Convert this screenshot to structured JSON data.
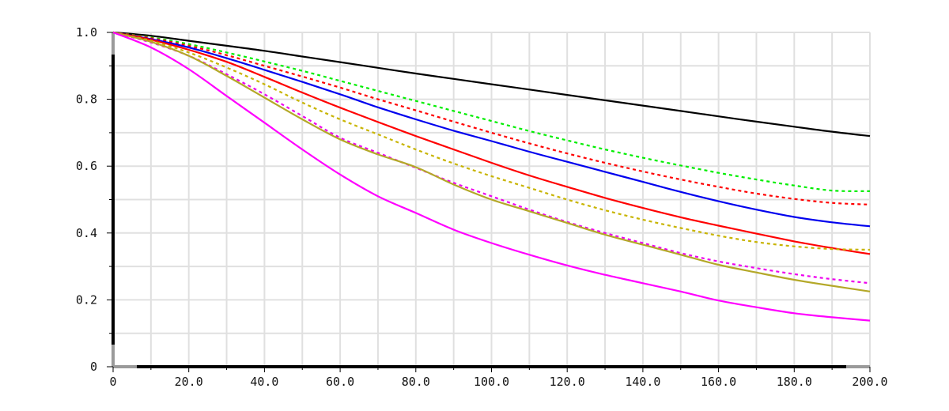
{
  "chart_data": {
    "type": "line",
    "title": "",
    "xlabel": "",
    "ylabel": "",
    "xlim": [
      0,
      200
    ],
    "ylim": [
      0,
      1
    ],
    "grid": true,
    "x_ticks": [
      "0",
      "20.0",
      "40.0",
      "60.0",
      "80.0",
      "100.0",
      "120.0",
      "140.0",
      "160.0",
      "180.0",
      "200.0"
    ],
    "y_ticks": [
      "0",
      "0.2",
      "0.4",
      "0.6",
      "0.8",
      "1.0"
    ],
    "x": [
      0,
      10,
      20,
      30,
      40,
      50,
      60,
      70,
      80,
      90,
      100,
      110,
      120,
      130,
      140,
      150,
      160,
      170,
      180,
      190,
      200
    ],
    "series": [
      {
        "color": "#000000",
        "style": "solid",
        "values": [
          1.0,
          0.99,
          0.975,
          0.96,
          0.945,
          0.928,
          0.911,
          0.894,
          0.877,
          0.861,
          0.845,
          0.829,
          0.813,
          0.797,
          0.781,
          0.765,
          0.749,
          0.733,
          0.718,
          0.703,
          0.69
        ]
      },
      {
        "color": "#00ee00",
        "style": "dotted",
        "values": [
          1.0,
          0.985,
          0.965,
          0.94,
          0.913,
          0.885,
          0.855,
          0.825,
          0.795,
          0.765,
          0.735,
          0.705,
          0.677,
          0.65,
          0.625,
          0.602,
          0.58,
          0.56,
          0.542,
          0.527,
          0.525
        ]
      },
      {
        "color": "#ff0000",
        "style": "dotted",
        "values": [
          1.0,
          0.983,
          0.96,
          0.932,
          0.9,
          0.868,
          0.835,
          0.8,
          0.767,
          0.733,
          0.7,
          0.668,
          0.638,
          0.61,
          0.584,
          0.56,
          0.538,
          0.518,
          0.502,
          0.49,
          0.485
        ]
      },
      {
        "color": "#0000ee",
        "style": "solid",
        "values": [
          1.0,
          0.98,
          0.955,
          0.923,
          0.888,
          0.852,
          0.815,
          0.776,
          0.74,
          0.706,
          0.675,
          0.643,
          0.613,
          0.583,
          0.553,
          0.523,
          0.495,
          0.47,
          0.448,
          0.432,
          0.42
        ]
      },
      {
        "color": "#ff0000",
        "style": "solid",
        "values": [
          1.0,
          0.978,
          0.948,
          0.912,
          0.867,
          0.82,
          0.775,
          0.732,
          0.69,
          0.65,
          0.61,
          0.572,
          0.538,
          0.505,
          0.475,
          0.447,
          0.422,
          0.398,
          0.375,
          0.355,
          0.337
        ]
      },
      {
        "color": "#c8b400",
        "style": "dotted",
        "values": [
          1.0,
          0.975,
          0.94,
          0.895,
          0.845,
          0.79,
          0.74,
          0.695,
          0.65,
          0.608,
          0.57,
          0.535,
          0.5,
          0.468,
          0.44,
          0.415,
          0.392,
          0.373,
          0.36,
          0.352,
          0.35
        ]
      },
      {
        "color": "#ee00ee",
        "style": "dotted",
        "values": [
          1.0,
          0.97,
          0.93,
          0.875,
          0.815,
          0.75,
          0.685,
          0.64,
          0.595,
          0.55,
          0.51,
          0.47,
          0.433,
          0.4,
          0.37,
          0.34,
          0.315,
          0.295,
          0.277,
          0.262,
          0.25
        ]
      },
      {
        "color": "#b4a828",
        "style": "solid",
        "values": [
          1.0,
          0.972,
          0.93,
          0.87,
          0.805,
          0.74,
          0.68,
          0.635,
          0.597,
          0.545,
          0.5,
          0.465,
          0.43,
          0.395,
          0.365,
          0.335,
          0.305,
          0.282,
          0.26,
          0.242,
          0.225
        ]
      },
      {
        "color": "#ff00ff",
        "style": "solid",
        "values": [
          1.0,
          0.955,
          0.89,
          0.81,
          0.73,
          0.65,
          0.575,
          0.51,
          0.46,
          0.41,
          0.37,
          0.335,
          0.303,
          0.275,
          0.25,
          0.225,
          0.198,
          0.178,
          0.16,
          0.148,
          0.138
        ]
      }
    ]
  }
}
